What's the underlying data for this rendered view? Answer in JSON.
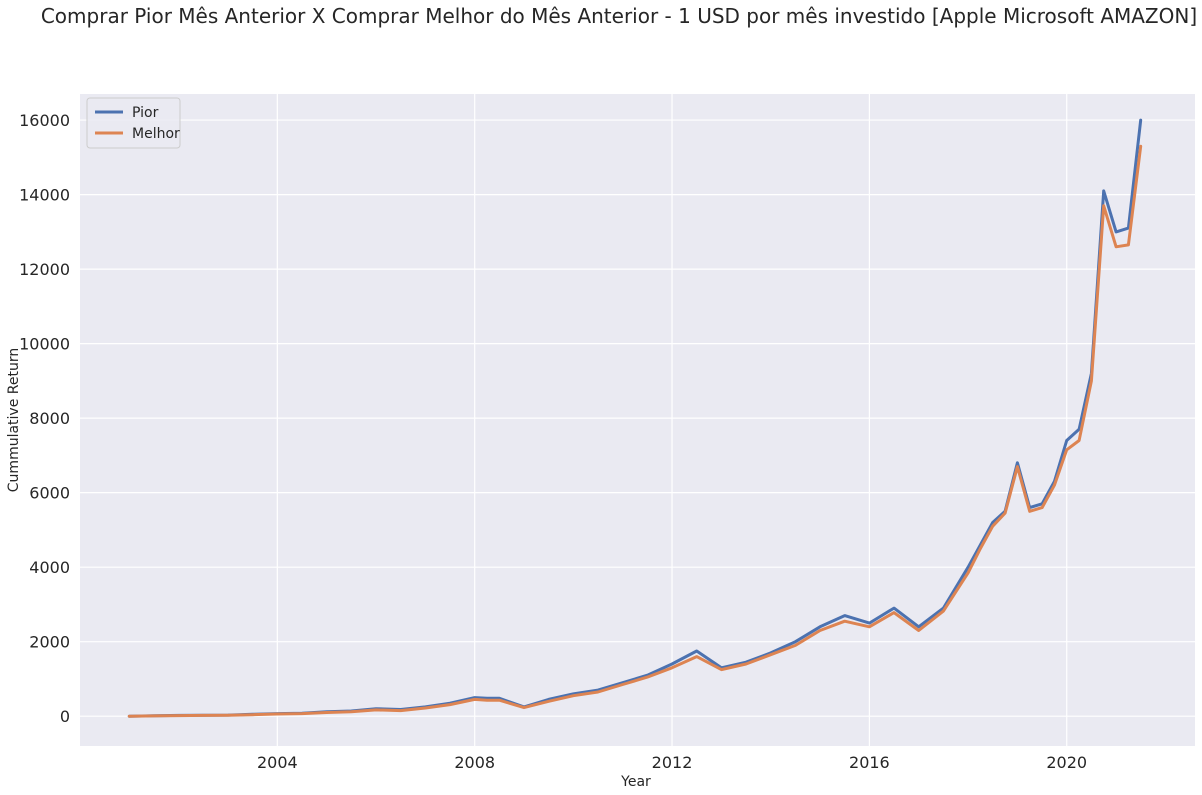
{
  "chart_data": {
    "type": "line",
    "title": "Comprar Pior Mês Anterior X Comprar Melhor do Mês Anterior - 1 USD por mês investido [Apple Microsoft AMAZON]",
    "xlabel": "Year",
    "ylabel": "Cummulative Return",
    "xlim": [
      2000.0,
      2022.6
    ],
    "ylim": [
      -800,
      16700
    ],
    "x_ticks": [
      2004,
      2008,
      2012,
      2016,
      2020
    ],
    "y_ticks": [
      0,
      2000,
      4000,
      6000,
      8000,
      10000,
      12000,
      14000,
      16000
    ],
    "grid": true,
    "legend_position": "top-left",
    "background_color": "#eaeaf2",
    "grid_color": "#ffffff",
    "x": [
      2001.0,
      2001.5,
      2002.0,
      2002.5,
      2003.0,
      2003.5,
      2004.0,
      2004.5,
      2005.0,
      2005.5,
      2006.0,
      2006.5,
      2007.0,
      2007.5,
      2008.0,
      2008.25,
      2008.5,
      2009.0,
      2009.5,
      2010.0,
      2010.5,
      2011.0,
      2011.5,
      2012.0,
      2012.5,
      2013.0,
      2013.5,
      2014.0,
      2014.5,
      2015.0,
      2015.5,
      2016.0,
      2016.5,
      2017.0,
      2017.5,
      2018.0,
      2018.25,
      2018.5,
      2018.75,
      2019.0,
      2019.25,
      2019.5,
      2019.75,
      2020.0,
      2020.25,
      2020.5,
      2020.75,
      2021.0,
      2021.25,
      2021.5
    ],
    "series": [
      {
        "name": "Pior",
        "color": "#4c72b0",
        "values": [
          0,
          10,
          20,
          25,
          30,
          50,
          70,
          80,
          120,
          140,
          200,
          180,
          250,
          350,
          500,
          480,
          480,
          250,
          450,
          600,
          700,
          900,
          1100,
          1400,
          1750,
          1300,
          1450,
          1700,
          2000,
          2400,
          2700,
          2500,
          2900,
          2400,
          2900,
          4000,
          4600,
          5200,
          5500,
          6800,
          5600,
          5700,
          6300,
          7400,
          7700,
          9200,
          14100,
          13000,
          13100,
          16000
        ]
      },
      {
        "name": "Melhor",
        "color": "#dd8452",
        "values": [
          0,
          8,
          15,
          20,
          25,
          40,
          60,
          70,
          100,
          120,
          170,
          150,
          220,
          310,
          450,
          430,
          430,
          230,
          400,
          550,
          650,
          850,
          1050,
          1300,
          1600,
          1250,
          1400,
          1650,
          1900,
          2300,
          2550,
          2400,
          2780,
          2300,
          2820,
          3850,
          4500,
          5100,
          5450,
          6700,
          5500,
          5600,
          6200,
          7150,
          7400,
          9000,
          13700,
          12600,
          12650,
          15300
        ]
      }
    ]
  }
}
